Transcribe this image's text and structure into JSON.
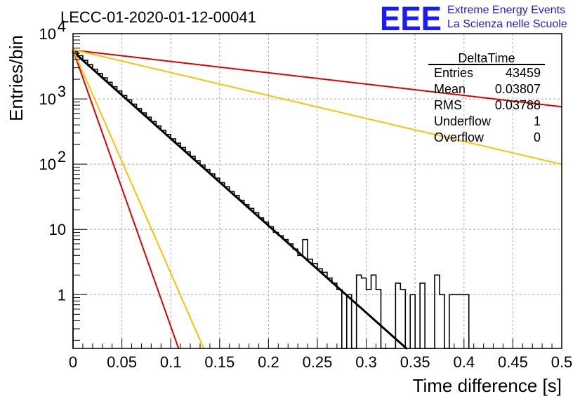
{
  "chart_data": {
    "type": "bar",
    "title": "LECC-01-2020-01-12-00041",
    "xlabel": "Time difference [s]",
    "ylabel": "Entries/bin",
    "xlim": [
      0,
      0.5
    ],
    "ylim": [
      0.15,
      10000
    ],
    "y_scale": "log",
    "grid": true,
    "x_ticks": [
      "0",
      "0.05",
      "0.1",
      "0.15",
      "0.2",
      "0.25",
      "0.3",
      "0.35",
      "0.4",
      "0.45",
      "0.5"
    ],
    "y_ticks": [
      {
        "value": 1,
        "label": "1"
      },
      {
        "value": 10,
        "label": "10"
      },
      {
        "value": 100,
        "label": "10",
        "exp": "2"
      },
      {
        "value": 1000,
        "label": "10",
        "exp": "3"
      },
      {
        "value": 10000,
        "label": "10",
        "exp": "4"
      }
    ],
    "histogram": {
      "bin_width": 0.005,
      "values": [
        5300,
        4600,
        3900,
        3350,
        2850,
        2450,
        2100,
        1800,
        1540,
        1320,
        1130,
        970,
        830,
        710,
        610,
        525,
        450,
        385,
        330,
        285,
        244,
        210,
        180,
        154,
        132,
        113,
        97,
        83,
        71,
        61,
        52,
        45,
        38,
        33,
        28,
        24,
        21,
        18,
        15,
        13,
        11,
        9,
        8,
        7,
        6,
        5,
        4,
        7,
        3.5,
        3,
        2.5,
        2.2,
        1.8,
        1.5,
        1.2,
        0.1,
        1,
        0.1,
        2,
        1.8,
        1.2,
        2,
        1.2,
        0.1,
        0.1,
        0.1,
        1.5,
        1.2,
        0.1,
        1,
        0.1,
        1.5,
        0.1,
        0.1,
        2,
        1,
        0.1,
        1,
        1,
        1,
        1
      ],
      "linecolor": "#000000"
    },
    "fit_lines": [
      {
        "color": "#000000",
        "y0": 5300,
        "slope": -30.7,
        "width": 3
      },
      {
        "color": "#dd0000",
        "y0": 5600,
        "slope": -4.0,
        "width": 2
      },
      {
        "color": "#ffc000",
        "y0": 5700,
        "slope": -8.1,
        "width": 2
      },
      {
        "color": "#dd0000",
        "y0": 5600,
        "slope": -97.5,
        "width": 2
      },
      {
        "color": "#ffc000",
        "y0": 5700,
        "slope": -78.9,
        "width": 2
      }
    ],
    "stats": {
      "name": "DeltaTime",
      "rows": [
        {
          "label": "Entries",
          "value": "43459"
        },
        {
          "label": "Mean",
          "value": "0.03807"
        },
        {
          "label": "RMS",
          "value": "0.03788"
        },
        {
          "label": "Underflow",
          "value": "1"
        },
        {
          "label": "Overflow",
          "value": "0"
        }
      ]
    }
  },
  "logo": {
    "mark": "EEE",
    "line1": "Extreme Energy Events",
    "line2": "La Scienza nelle Scuole",
    "color": "#1a1aff"
  }
}
